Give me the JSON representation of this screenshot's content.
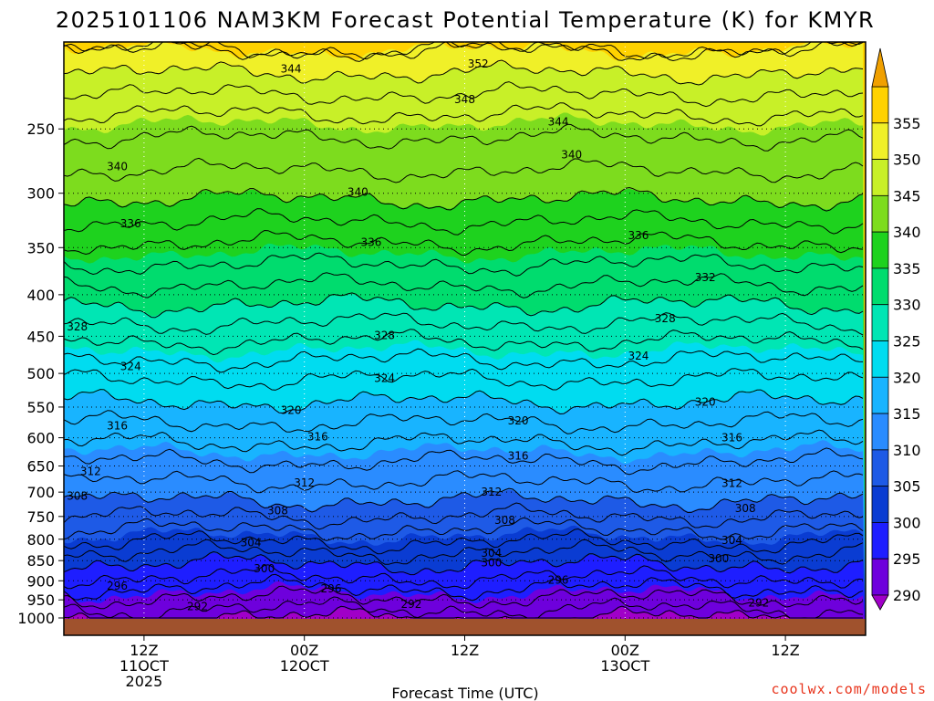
{
  "chart_data": {
    "type": "heatmap",
    "title": "2025101106 NAM3KM Forecast Potential Temperature (K) for KMYR",
    "xlabel": "Forecast Time (UTC)",
    "ylabel": "",
    "y_scale": "log-pressure (inverted)",
    "ylim_hPa": [
      1000,
      200
    ],
    "xlim_forecast_hours": [
      0,
      60
    ],
    "y_ticks": [
      250,
      300,
      350,
      400,
      450,
      500,
      550,
      600,
      650,
      700,
      750,
      800,
      850,
      900,
      950,
      1000
    ],
    "x_ticks": [
      {
        "hour": 6,
        "label": [
          "12Z",
          "11OCT",
          "2025"
        ]
      },
      {
        "hour": 18,
        "label": [
          "00Z",
          "12OCT"
        ]
      },
      {
        "hour": 30,
        "label": [
          "12Z"
        ]
      },
      {
        "hour": 42,
        "label": [
          "00Z",
          "13OCT"
        ]
      },
      {
        "hour": 54,
        "label": [
          "12Z"
        ]
      }
    ],
    "grid": true,
    "colorbar": {
      "position": "right",
      "min": 285,
      "max": 360,
      "labels": [
        290,
        295,
        300,
        305,
        310,
        315,
        320,
        325,
        330,
        335,
        340,
        345,
        350,
        355
      ],
      "colors": [
        "#a000c8",
        "#6e00dc",
        "#1e1eff",
        "#0a3cd2",
        "#1e5ae6",
        "#2a8cff",
        "#18b4ff",
        "#00dcf0",
        "#00e6b4",
        "#00dc6e",
        "#1ed21e",
        "#7ddc1e",
        "#c8f028",
        "#f0f028",
        "#ffd200",
        "#f0a000"
      ]
    },
    "profile": [
      {
        "p": 1000,
        "theta": 290.5
      },
      {
        "p": 950,
        "theta": 293.5
      },
      {
        "p": 900,
        "theta": 297.5
      },
      {
        "p": 850,
        "theta": 300.5
      },
      {
        "p": 800,
        "theta": 304.5
      },
      {
        "p": 750,
        "theta": 308
      },
      {
        "p": 700,
        "theta": 311
      },
      {
        "p": 650,
        "theta": 313.5
      },
      {
        "p": 600,
        "theta": 316.5
      },
      {
        "p": 550,
        "theta": 319.5
      },
      {
        "p": 500,
        "theta": 322.5
      },
      {
        "p": 450,
        "theta": 326.5
      },
      {
        "p": 400,
        "theta": 331
      },
      {
        "p": 350,
        "theta": 335.5
      },
      {
        "p": 300,
        "theta": 340.5
      },
      {
        "p": 250,
        "theta": 344.5
      },
      {
        "p": 200,
        "theta": 352
      }
    ],
    "contour_levels": [
      290,
      292,
      294,
      296,
      298,
      300,
      302,
      304,
      306,
      308,
      310,
      312,
      314,
      316,
      318,
      320,
      322,
      324,
      326,
      328,
      330,
      332,
      334,
      336,
      338,
      340,
      342,
      344,
      346,
      348,
      350,
      352,
      354
    ],
    "contour_labels": [
      {
        "text": "292",
        "hour": 10,
        "p": 968
      },
      {
        "text": "292",
        "hour": 26,
        "p": 962
      },
      {
        "text": "292",
        "hour": 52,
        "p": 958
      },
      {
        "text": "296",
        "hour": 4,
        "p": 913
      },
      {
        "text": "296",
        "hour": 20,
        "p": 920
      },
      {
        "text": "296",
        "hour": 37,
        "p": 898
      },
      {
        "text": "300",
        "hour": 15,
        "p": 870
      },
      {
        "text": "300",
        "hour": 32,
        "p": 855
      },
      {
        "text": "300",
        "hour": 49,
        "p": 845
      },
      {
        "text": "304",
        "hour": 14,
        "p": 808
      },
      {
        "text": "304",
        "hour": 32,
        "p": 832
      },
      {
        "text": "304",
        "hour": 50,
        "p": 803
      },
      {
        "text": "308",
        "hour": 1,
        "p": 708
      },
      {
        "text": "308",
        "hour": 16,
        "p": 738
      },
      {
        "text": "308",
        "hour": 33,
        "p": 758
      },
      {
        "text": "308",
        "hour": 51,
        "p": 733
      },
      {
        "text": "312",
        "hour": 2,
        "p": 660
      },
      {
        "text": "312",
        "hour": 18,
        "p": 682
      },
      {
        "text": "312",
        "hour": 32,
        "p": 700
      },
      {
        "text": "312",
        "hour": 50,
        "p": 683
      },
      {
        "text": "316",
        "hour": 4,
        "p": 580
      },
      {
        "text": "316",
        "hour": 19,
        "p": 598
      },
      {
        "text": "316",
        "hour": 34,
        "p": 632
      },
      {
        "text": "316",
        "hour": 50,
        "p": 600
      },
      {
        "text": "320",
        "hour": 17,
        "p": 555
      },
      {
        "text": "320",
        "hour": 34,
        "p": 572
      },
      {
        "text": "320",
        "hour": 48,
        "p": 542
      },
      {
        "text": "324",
        "hour": 5,
        "p": 490
      },
      {
        "text": "324",
        "hour": 24,
        "p": 507
      },
      {
        "text": "324",
        "hour": 43,
        "p": 476
      },
      {
        "text": "328",
        "hour": 1,
        "p": 438
      },
      {
        "text": "328",
        "hour": 24,
        "p": 449
      },
      {
        "text": "328",
        "hour": 45,
        "p": 428
      },
      {
        "text": "332",
        "hour": 48,
        "p": 381
      },
      {
        "text": "336",
        "hour": 5,
        "p": 327
      },
      {
        "text": "336",
        "hour": 23,
        "p": 345
      },
      {
        "text": "336",
        "hour": 43,
        "p": 338
      },
      {
        "text": "340",
        "hour": 4,
        "p": 278
      },
      {
        "text": "340",
        "hour": 22,
        "p": 299
      },
      {
        "text": "340",
        "hour": 38,
        "p": 269
      },
      {
        "text": "344",
        "hour": 17,
        "p": 211
      },
      {
        "text": "344",
        "hour": 37,
        "p": 245
      },
      {
        "text": "348",
        "hour": 30,
        "p": 230
      },
      {
        "text": "352",
        "hour": 31,
        "p": 208
      }
    ]
  },
  "credit": "coolwx.com/models"
}
